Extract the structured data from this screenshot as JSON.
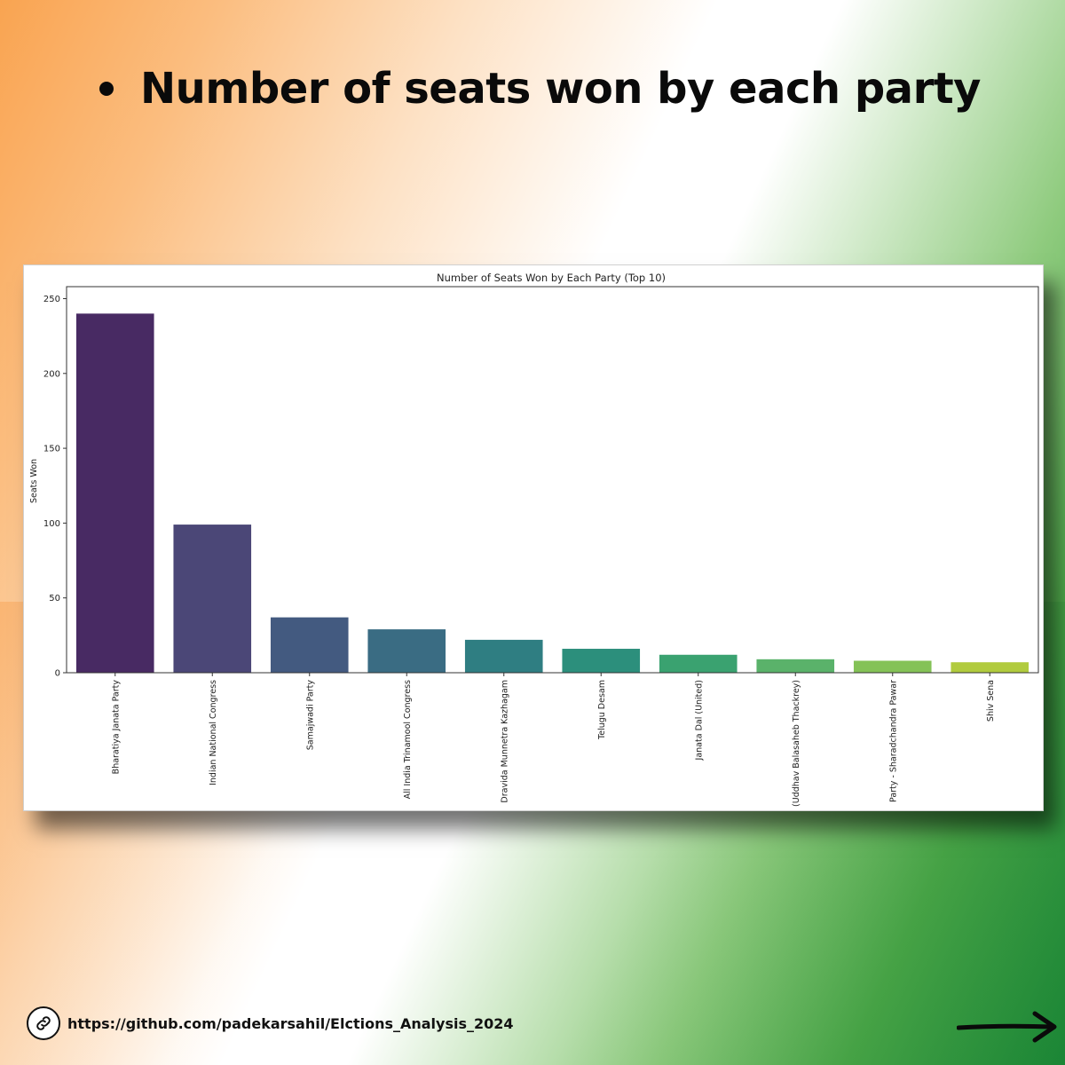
{
  "slide": {
    "heading": "Number of seats won by each party",
    "link_text": "https://github.com/padekarsahil/Elctions_Analysis_2024",
    "colors": {
      "saffron": "#f9a451",
      "green": "#1d8a3a",
      "text": "#0a0a0a"
    }
  },
  "chart_data": {
    "type": "bar",
    "title": "Number of Seats Won by Each Party (Top 10)",
    "xlabel": "",
    "ylabel": "Seats Won",
    "ylim": [
      0,
      250
    ],
    "yticks": [
      0,
      50,
      100,
      150,
      200,
      250
    ],
    "grid": false,
    "categories": [
      "Bharatiya Janata Party",
      "Indian National Congress",
      "Samajwadi Party",
      "All India Trinamool Congress",
      "Dravida Munnetra Kazhagam",
      "Telugu Desam",
      "Janata Dal (United)",
      "(Uddhav Balasaheb Thackrey)",
      "Party - Sharadchandra Pawar",
      "Shiv Sena"
    ],
    "values": [
      240,
      99,
      37,
      29,
      22,
      16,
      12,
      9,
      8,
      7
    ],
    "bar_colors": [
      "#482a63",
      "#4b4777",
      "#435a80",
      "#3a6c83",
      "#2f7e82",
      "#2c8f7c",
      "#3aa270",
      "#5ab26a",
      "#84c257",
      "#b1cb3e"
    ]
  }
}
